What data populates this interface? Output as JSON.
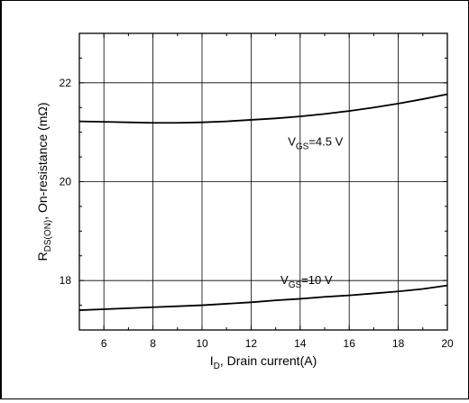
{
  "chart_data": {
    "type": "line",
    "xlabel_main": "I",
    "xlabel_sub": "D",
    "xlabel_rest": ", Drain current(A)",
    "ylabel_main": "R",
    "ylabel_sub": "DS(ON)",
    "ylabel_rest": ",  On-resistance (mΩ)",
    "xlim": [
      5,
      20
    ],
    "ylim": [
      17,
      23
    ],
    "x_ticks": [
      6,
      8,
      10,
      12,
      14,
      16,
      18,
      20
    ],
    "y_ticks": [
      18,
      20,
      22
    ],
    "grid": true,
    "series": [
      {
        "label_main": "V",
        "label_sub": "GS",
        "label_rest": "=4.5 V",
        "x": [
          5,
          6,
          7,
          8,
          9,
          10,
          11,
          12,
          13,
          14,
          15,
          16,
          17,
          18,
          19,
          20
        ],
        "y": [
          21.22,
          21.21,
          21.2,
          21.19,
          21.19,
          21.2,
          21.22,
          21.25,
          21.28,
          21.32,
          21.37,
          21.43,
          21.5,
          21.58,
          21.67,
          21.77
        ]
      },
      {
        "label_main": "V",
        "label_sub": "GS",
        "label_rest": "=10 V",
        "x": [
          5,
          6,
          7,
          8,
          9,
          10,
          11,
          12,
          13,
          14,
          15,
          16,
          17,
          18,
          19,
          20
        ],
        "y": [
          17.4,
          17.42,
          17.44,
          17.46,
          17.48,
          17.5,
          17.53,
          17.56,
          17.6,
          17.63,
          17.67,
          17.7,
          17.74,
          17.78,
          17.83,
          17.9
        ]
      }
    ]
  }
}
